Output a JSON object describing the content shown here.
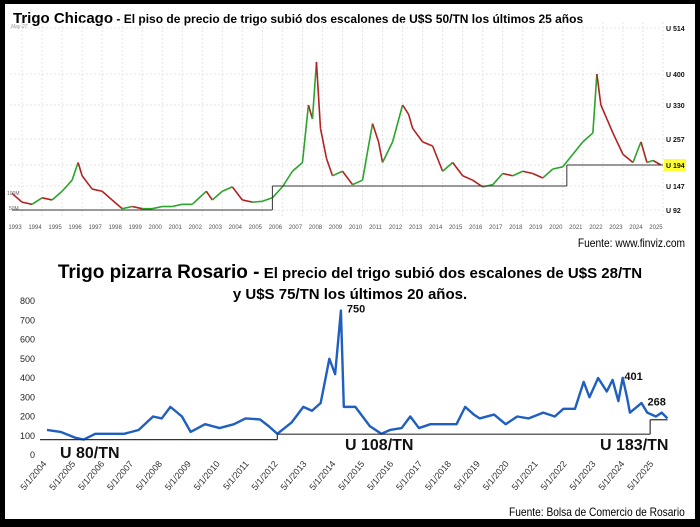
{
  "chart_data": [
    {
      "type": "line",
      "title_main": "Trigo Chicago",
      "title_rest": "- El piso de precio de trigo subió dos escalones de U$S 50/TN los últimos 25 años",
      "corner_label": "May 27",
      "volume_labels": [
        "100M",
        "50M"
      ],
      "x_ticks": [
        "1993",
        "1994",
        "1995",
        "1996",
        "1997",
        "1998",
        "1999",
        "2000",
        "2001",
        "2002",
        "2003",
        "2004",
        "2005",
        "2006",
        "2007",
        "2008",
        "2009",
        "2010",
        "2011",
        "2012",
        "2013",
        "2014",
        "2015",
        "2016",
        "2017",
        "2018",
        "2019",
        "2020",
        "2021",
        "2022",
        "2023",
        "2024",
        "2025"
      ],
      "y_ticks": [
        "U 514",
        "U 400",
        "U 330",
        "U 257",
        "U 194",
        "U 147",
        "U 92"
      ],
      "y_tick_values": [
        514,
        400,
        330,
        257,
        194,
        147,
        92
      ],
      "current_value_label": "U 194",
      "highlight_color": "#ffff33",
      "up_color": "#2aa52a",
      "down_color": "#b22222",
      "source": "Fuente: www.finviz.com",
      "series": [
        {
          "name": "Trigo Chicago",
          "x": [
            1993,
            1993.5,
            1994,
            1994.5,
            1995,
            1995.5,
            1996,
            1996.3,
            1996.5,
            1997,
            1997.5,
            1998,
            1998.5,
            1999,
            1999.5,
            2000,
            2000.5,
            2001,
            2001.5,
            2002,
            2002.7,
            2003,
            2003.5,
            2004,
            2004.5,
            2005,
            2005.5,
            2006,
            2006.5,
            2007,
            2007.5,
            2007.8,
            2008,
            2008.2,
            2008.4,
            2008.7,
            2009,
            2009.5,
            2010,
            2010.5,
            2010.8,
            2011,
            2011.3,
            2011.5,
            2012,
            2012.5,
            2012.8,
            2013,
            2013.5,
            2014,
            2014.5,
            2015,
            2015.5,
            2016,
            2016.5,
            2017,
            2017.5,
            2018,
            2018.5,
            2019,
            2019.5,
            2020,
            2020.5,
            2021,
            2021.5,
            2022,
            2022.2,
            2022.4,
            2022.7,
            2023,
            2023.5,
            2024,
            2024.4,
            2024.7,
            2025,
            2025.4
          ],
          "y": [
            130,
            110,
            105,
            120,
            115,
            135,
            160,
            200,
            170,
            140,
            135,
            115,
            95,
            100,
            95,
            95,
            100,
            100,
            105,
            105,
            135,
            115,
            135,
            145,
            115,
            110,
            112,
            120,
            145,
            180,
            200,
            330,
            300,
            430,
            280,
            210,
            170,
            180,
            150,
            160,
            240,
            290,
            250,
            200,
            250,
            330,
            310,
            280,
            250,
            240,
            180,
            200,
            170,
            160,
            145,
            150,
            175,
            170,
            180,
            175,
            165,
            185,
            190,
            220,
            250,
            270,
            400,
            330,
            300,
            270,
            220,
            200,
            250,
            200,
            205,
            194
          ]
        }
      ],
      "floors": [
        {
          "from": 1993,
          "to": 2006,
          "value": 92
        },
        {
          "from": 2006,
          "to": 2020.7,
          "value": 147
        },
        {
          "from": 2020.7,
          "to": 2025.5,
          "value": 194
        }
      ]
    },
    {
      "type": "line",
      "title_main": "Trigo pizarra Rosario -",
      "title_rest_line1": "El precio del trigo subió dos escalones de U$S 28/TN",
      "title_rest_line2": "y U$S 75/TN los últimos 20 años.",
      "ylim": [
        0,
        800
      ],
      "y_ticks": [
        "800",
        "700",
        "600",
        "500",
        "400",
        "300",
        "200",
        "100",
        "0"
      ],
      "x_ticks": [
        "5/1/2004",
        "5/1/2005",
        "5/1/2006",
        "5/1/2007",
        "5/1/2008",
        "5/1/2009",
        "5/1/2010",
        "5/1/2011",
        "5/1/2012",
        "5/1/2013",
        "5/1/2014",
        "5/1/2015",
        "5/1/2016",
        "5/1/2017",
        "5/1/2018",
        "5/1/2019",
        "5/1/2020",
        "5/1/2021",
        "5/1/2022",
        "5/1/2023",
        "5/1/2024",
        "5/1/2025"
      ],
      "line_color": "#1f5fbf",
      "annotations": [
        {
          "text": "750",
          "x": 2014.5,
          "y": 750
        },
        {
          "text": "401",
          "x": 2024.1,
          "y": 401
        },
        {
          "text": "268",
          "x": 2024.9,
          "y": 268
        }
      ],
      "floor_labels": [
        "U 80/TN",
        "U 108/TN",
        "U 183/TN"
      ],
      "floors": [
        {
          "from": 2004,
          "to": 2012.3,
          "value": 80
        },
        {
          "from": 2012.3,
          "to": 2025.2,
          "value": 108
        },
        {
          "from": 2025.2,
          "to": 2025.8,
          "value": 183
        }
      ],
      "source": "Fuente: Bolsa de Comercio de Rosario",
      "series": [
        {
          "name": "Trigo pizarra Rosario",
          "x": [
            2004.33,
            2004.8,
            2005.3,
            2005.6,
            2006,
            2007,
            2007.5,
            2008,
            2008.3,
            2008.6,
            2009,
            2009.3,
            2009.8,
            2010.3,
            2010.8,
            2011.2,
            2011.7,
            2012,
            2012.3,
            2012.8,
            2013.2,
            2013.5,
            2013.8,
            2014.1,
            2014.3,
            2014.5,
            2014.6,
            2015,
            2015.5,
            2015.9,
            2016.2,
            2016.6,
            2016.9,
            2017.2,
            2017.6,
            2018,
            2018.5,
            2018.8,
            2019.1,
            2019.3,
            2019.8,
            2020.2,
            2020.6,
            2021,
            2021.5,
            2021.9,
            2022.2,
            2022.6,
            2022.9,
            2023.1,
            2023.4,
            2023.7,
            2023.9,
            2024.1,
            2024.25,
            2024.4,
            2024.5,
            2024.9,
            2025.1,
            2025.4,
            2025.6,
            2025.8
          ],
          "y": [
            130,
            120,
            90,
            80,
            110,
            110,
            130,
            200,
            190,
            250,
            200,
            120,
            160,
            140,
            160,
            190,
            185,
            150,
            110,
            170,
            250,
            230,
            270,
            500,
            420,
            750,
            250,
            250,
            150,
            110,
            130,
            140,
            200,
            140,
            160,
            160,
            160,
            250,
            210,
            190,
            210,
            160,
            200,
            190,
            220,
            200,
            240,
            240,
            380,
            300,
            400,
            330,
            390,
            280,
            401,
            300,
            220,
            270,
            220,
            200,
            220,
            190
          ]
        }
      ]
    }
  ]
}
